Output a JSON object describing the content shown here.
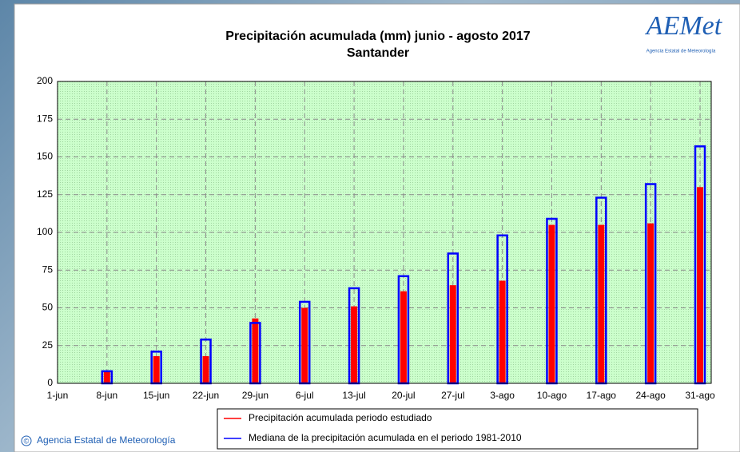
{
  "chart_data": {
    "type": "bar",
    "title": "Precipitación acumulada (mm) junio - agosto 2017",
    "subtitle": "Santander",
    "logo": "AEMet",
    "logo_caption": "Agencia Estatal de Meteorología",
    "copyright_symbol": "©",
    "copyright": "Agencia Estatal de Meteorología",
    "categories": [
      "1-jun",
      "8-jun",
      "15-jun",
      "22-jun",
      "29-jun",
      "6-jul",
      "13-jul",
      "20-jul",
      "27-jul",
      "3-ago",
      "10-ago",
      "17-ago",
      "24-ago",
      "31-ago"
    ],
    "series": [
      {
        "name": "Precipitación acumulada periodo estudiado",
        "color": "#ff0000",
        "values": [
          0,
          8,
          18,
          18,
          43,
          50,
          51,
          61,
          65,
          68,
          105,
          105,
          106,
          130
        ]
      },
      {
        "name": "Mediana de la precipitación acumulada en el periodo 1981-2010",
        "color": "#0000ff",
        "values": [
          0,
          8,
          21,
          29,
          40,
          54,
          63,
          71,
          86,
          98,
          109,
          123,
          132,
          157
        ]
      }
    ],
    "ylim": [
      0,
      200
    ],
    "yticks": [
      0,
      25,
      50,
      75,
      100,
      125,
      150,
      175,
      200
    ],
    "grid": true
  }
}
